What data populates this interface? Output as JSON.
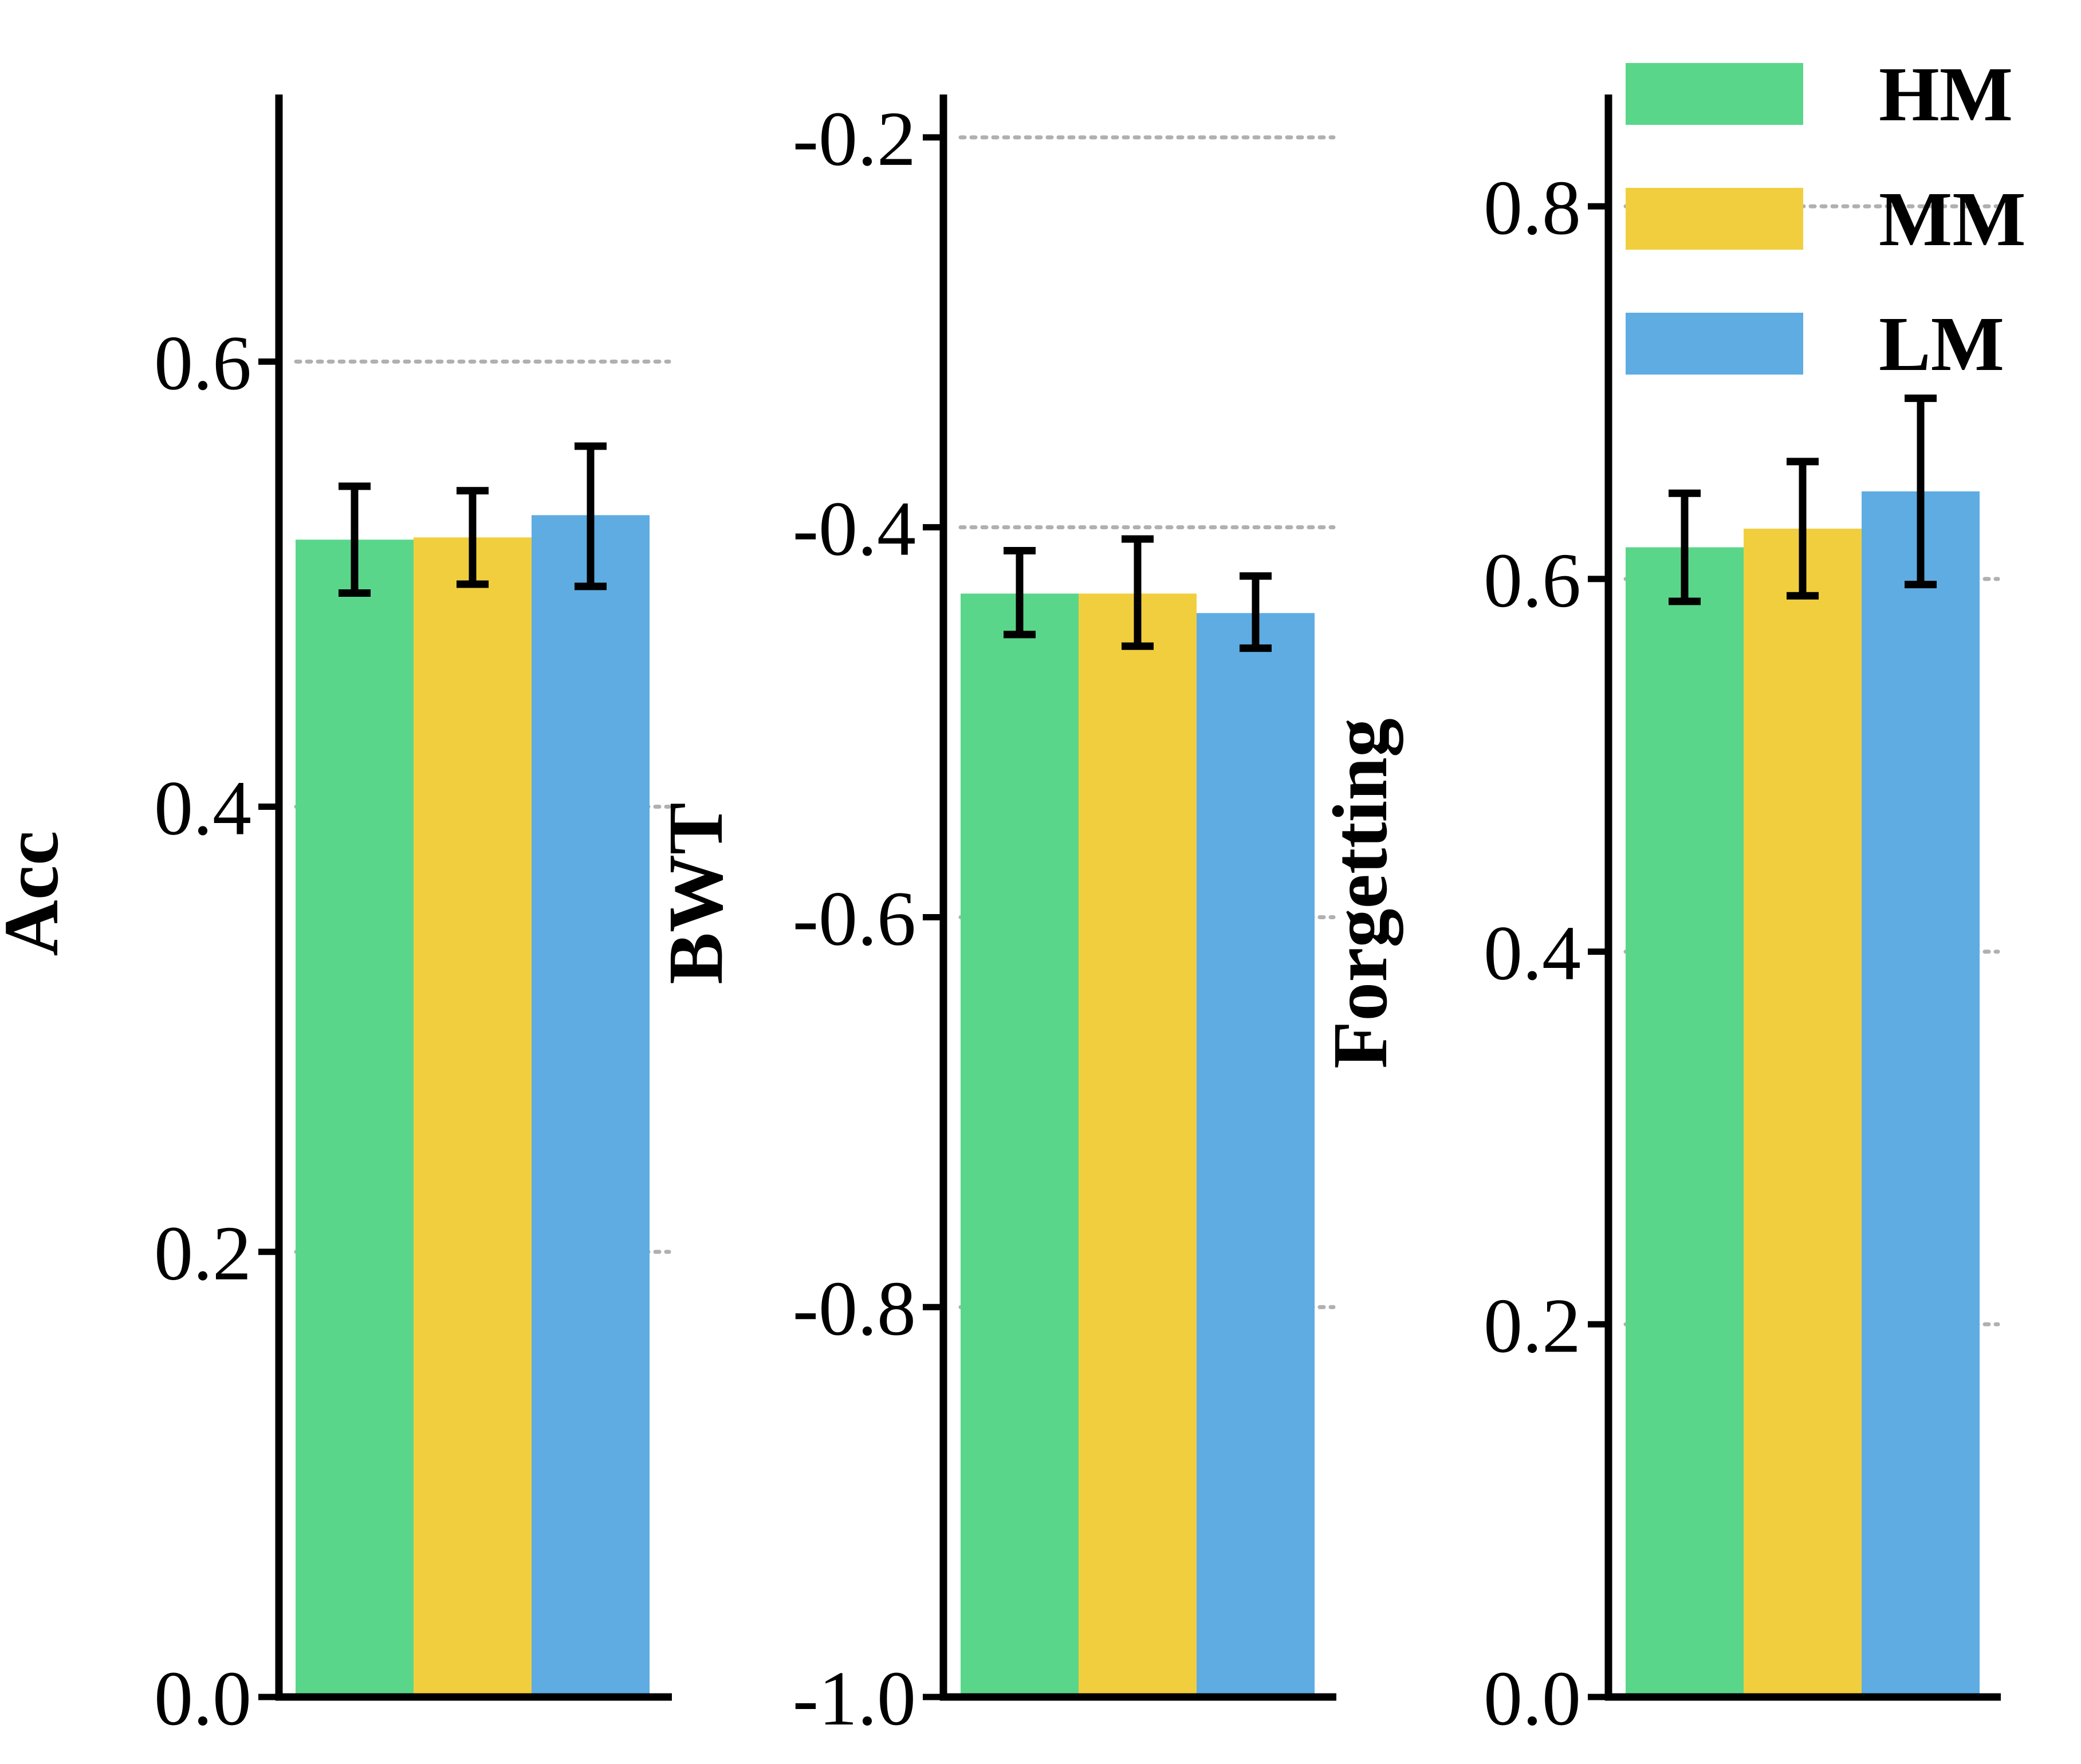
{
  "chart_data": [
    {
      "type": "bar",
      "ylabel": "Acc",
      "ylim": [
        0,
        0.72
      ],
      "yticks": [
        0.0,
        0.2,
        0.4,
        0.6
      ],
      "ytick_labels": [
        "0.0",
        "0.2",
        "0.4",
        "0.6"
      ],
      "grid": "dotted horizontal",
      "series": [
        {
          "name": "HM",
          "value": 0.52,
          "err_low": 0.496,
          "err_high": 0.544
        },
        {
          "name": "MM",
          "value": 0.521,
          "err_low": 0.5,
          "err_high": 0.542
        },
        {
          "name": "LM",
          "value": 0.531,
          "err_low": 0.499,
          "err_high": 0.562
        }
      ]
    },
    {
      "type": "bar",
      "ylabel": "BWT",
      "ylim": [
        -1.0,
        -0.178
      ],
      "yticks": [
        -1.0,
        -0.8,
        -0.6,
        -0.4,
        -0.2
      ],
      "ytick_labels": [
        "-1.0",
        "-0.8",
        "-0.6",
        "-0.4",
        "-0.2"
      ],
      "grid": "dotted horizontal",
      "series": [
        {
          "name": "HM",
          "value": -0.434,
          "err_low": -0.455,
          "err_high": -0.412
        },
        {
          "name": "MM",
          "value": -0.434,
          "err_low": -0.461,
          "err_high": -0.406
        },
        {
          "name": "LM",
          "value": -0.444,
          "err_low": -0.462,
          "err_high": -0.425
        }
      ]
    },
    {
      "type": "bar",
      "ylabel": "Forgetting",
      "ylim": [
        0,
        0.86
      ],
      "yticks": [
        0.0,
        0.2,
        0.4,
        0.6,
        0.8
      ],
      "ytick_labels": [
        "0.0",
        "0.2",
        "0.4",
        "0.6",
        "0.8"
      ],
      "grid": "dotted horizontal",
      "series": [
        {
          "name": "HM",
          "value": 0.617,
          "err_low": 0.588,
          "err_high": 0.646
        },
        {
          "name": "MM",
          "value": 0.627,
          "err_low": 0.591,
          "err_high": 0.663
        },
        {
          "name": "LM",
          "value": 0.647,
          "err_low": 0.597,
          "err_high": 0.697
        }
      ]
    }
  ],
  "legend": {
    "placement": "top-right",
    "items": [
      {
        "label": "HM",
        "color": "#5AD68B"
      },
      {
        "label": "MM",
        "color": "#F1CE3E"
      },
      {
        "label": "LM",
        "color": "#5EACE2"
      }
    ]
  },
  "colors": {
    "HM": "#5AD68B",
    "MM": "#F1CE3E",
    "LM": "#5EACE2",
    "axis": "#000000",
    "grid": "#B0B0B0"
  }
}
